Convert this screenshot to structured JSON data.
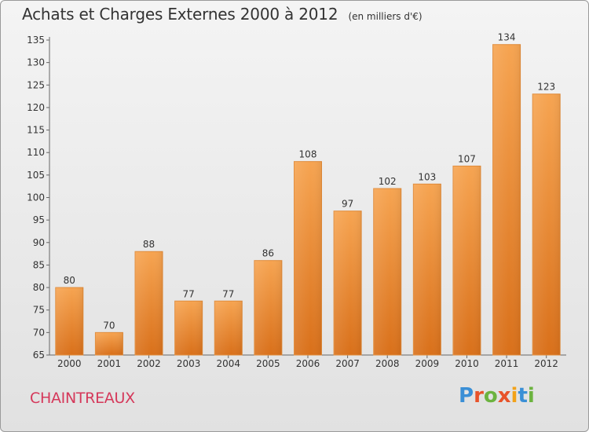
{
  "header": {
    "title": "Achats et Charges Externes 2000 à 2012",
    "unit": "(en milliers d'€)"
  },
  "footer": {
    "commune": "CHAINTREAUX",
    "logo_letters": [
      "P",
      "r",
      "o",
      "x",
      "i",
      "t",
      "i"
    ],
    "logo_colors": [
      "#3a8fd6",
      "#e8532a",
      "#6cb33f",
      "#e8532a",
      "#f2a21a",
      "#3a8fd6",
      "#6cb33f"
    ]
  },
  "chart_data": {
    "type": "bar",
    "categories": [
      "2000",
      "2001",
      "2002",
      "2003",
      "2004",
      "2005",
      "2006",
      "2007",
      "2008",
      "2009",
      "2010",
      "2011",
      "2012"
    ],
    "values": [
      80,
      70,
      88,
      77,
      77,
      86,
      108,
      97,
      102,
      103,
      107,
      134,
      123
    ],
    "title": "Achats et Charges Externes 2000 à 2012",
    "unit": "(en milliers d'€)",
    "ylim": [
      65,
      135
    ],
    "yticks": [
      65,
      70,
      75,
      80,
      85,
      90,
      95,
      100,
      105,
      110,
      115,
      120,
      125,
      130,
      135
    ],
    "grid": false,
    "bar_color": "#f0932f"
  }
}
